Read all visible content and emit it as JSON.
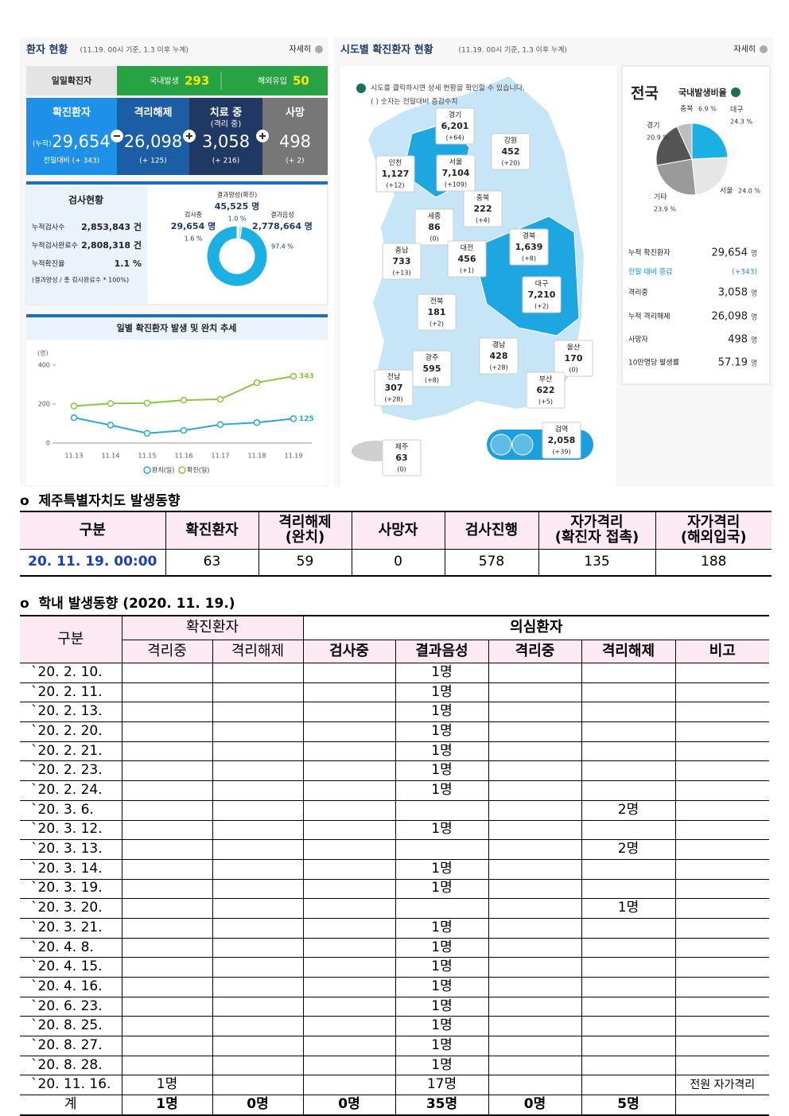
{
  "dashboard": {
    "title": "환자 현황",
    "basis": "(11.19. 00시 기준, 1.3 이후 누계)",
    "more": "자세히",
    "daily_label": "일일확진자",
    "domestic_label": "국내발생",
    "domestic": "293",
    "overseas_label": "해외유입",
    "overseas": "50",
    "stats": [
      {
        "label": "확진환자",
        "prefix": "(누적)",
        "value": "29,654",
        "sub": "전일대비 (+ 343)"
      },
      {
        "label": "격리해제",
        "value": "26,098",
        "sub": "(+ 125)"
      },
      {
        "label": "치료 중",
        "note": "(격리 중)",
        "value": "3,058",
        "sub": "(+ 216)"
      },
      {
        "label": "사망",
        "value": "498",
        "sub": "(+ 2)"
      }
    ],
    "test_title": "검사현황",
    "tests": [
      {
        "label": "누적검사수",
        "value": "2,853,843 건"
      },
      {
        "label": "누적검사완료수",
        "value": "2,808,318 건"
      },
      {
        "label": "누적확진율",
        "value": "1.1 %"
      }
    ],
    "test_note": "(결과양성 / 총 검사완료수 * 100%)",
    "donut_counts": [
      "45,525 명",
      "29,654 명",
      "2,778,664 명"
    ]
  },
  "map": {
    "title": "시도별 확진환자 현황",
    "basis": "(11.19. 00시 기준, 1.3 이후 누계)",
    "more": "자세히",
    "hint": "시도를 클릭하시면 상세 현황을 확인할 수 있습니다.",
    "hint2": "( ) 숫자는 전일대비 증감수치",
    "regions": [
      {
        "name": "경기",
        "total": "6,201",
        "change": "(+64)"
      },
      {
        "name": "강원",
        "total": "452",
        "change": "(+20)"
      },
      {
        "name": "인천",
        "total": "1,127",
        "change": "(+12)"
      },
      {
        "name": "서울",
        "total": "7,104",
        "change": "(+109)"
      },
      {
        "name": "충북",
        "total": "222",
        "change": "(+4)"
      },
      {
        "name": "세종",
        "total": "86",
        "change": "(0)"
      },
      {
        "name": "경북",
        "total": "1,639",
        "change": "(+8)"
      },
      {
        "name": "충남",
        "total": "733",
        "change": "(+13)"
      },
      {
        "name": "대전",
        "total": "456",
        "change": "(+1)"
      },
      {
        "name": "대구",
        "total": "7,210",
        "change": "(+2)"
      },
      {
        "name": "전북",
        "total": "181",
        "change": "(+2)"
      },
      {
        "name": "경남",
        "total": "428",
        "change": "(+28)"
      },
      {
        "name": "울산",
        "total": "170",
        "change": "(0)"
      },
      {
        "name": "광주",
        "total": "595",
        "change": "(+8)"
      },
      {
        "name": "전남",
        "total": "307",
        "change": "(+28)"
      },
      {
        "name": "부산",
        "total": "622",
        "change": "(+5)"
      },
      {
        "name": "검역",
        "total": "2,058",
        "change": "(+39)"
      },
      {
        "name": "제주",
        "total": "63",
        "change": "(0)"
      }
    ]
  },
  "national": {
    "title": "전국",
    "items": [
      {
        "label": "누적 확진환자",
        "value": "29,654",
        "unit": "명"
      },
      {
        "label": "전일 대비 증감",
        "value": "(+343)"
      },
      {
        "label": "격리중",
        "value": "3,058",
        "unit": "명"
      },
      {
        "label": "누적 격리해제",
        "value": "26,098",
        "unit": "명"
      },
      {
        "label": "사망자",
        "value": "498",
        "unit": "명"
      },
      {
        "label": "10만명당 발생률",
        "value": "57.19",
        "unit": "명"
      }
    ]
  },
  "chart_data": [
    {
      "type": "line",
      "title": "일별 확진환자 발생 및 완치 추세",
      "y_label": "(명)",
      "categories": [
        "11.13",
        "11.14",
        "11.15",
        "11.16",
        "11.17",
        "11.18",
        "11.19"
      ],
      "series": [
        {
          "name": "완치(일)",
          "color": "#29a9d6",
          "values": [
            130,
            92,
            50,
            65,
            95,
            105,
            125
          ]
        },
        {
          "name": "확진(일)",
          "color": "#8cc63f",
          "values": [
            190,
            203,
            205,
            220,
            225,
            310,
            343
          ]
        }
      ],
      "ylim": [
        0,
        400
      ],
      "yticks": [
        0,
        200,
        400
      ]
    },
    {
      "type": "donut",
      "categories": [
        "결과양성(확진)",
        "검사중",
        "결과음성"
      ],
      "values": [
        1.0,
        1.6,
        97.4
      ],
      "value_labels": [
        "1.0 %",
        "1.6 %",
        "97.4 %"
      ],
      "colors": [
        "#f2f2f2",
        "#c8d6e0",
        "#1ab0e4"
      ]
    },
    {
      "type": "pie",
      "title": "국내발생비율",
      "categories": [
        "대구",
        "서울",
        "기타",
        "경기",
        "충북"
      ],
      "values": [
        24.3,
        24.0,
        23.9,
        20.9,
        6.9
      ],
      "value_labels": [
        "24.3 %",
        "24.0 %",
        "23.9 %",
        "20.9 %",
        "6.9 %"
      ],
      "colors": [
        "#1ab0e4",
        "#e6e6e6",
        "#9a9a9a",
        "#555555",
        "#bdbdbd"
      ]
    }
  ],
  "jeju": {
    "title": "o  제주특별자치도 발생동향",
    "header": [
      "구분",
      "확진환자",
      "격리해제\n(완치)",
      "사망자",
      "검사진행",
      "자가격리\n(확진자 접촉)",
      "자가격리\n(해외입국)"
    ],
    "rows": [
      [
        "20. 11. 19. 00:00",
        "63",
        "59",
        "0",
        "578",
        "135",
        "188"
      ]
    ]
  },
  "school": {
    "title": "o  학내 발생동향 (2020. 11. 19.)",
    "header_top": [
      "구분",
      "확진환자",
      "의심환자"
    ],
    "header_sub": [
      "격리중",
      "격리해제",
      "검사중",
      "결과음성",
      "격리중",
      "격리해제",
      "비고"
    ],
    "rows": [
      [
        "`20. 2. 10.",
        null,
        null,
        null,
        "1명",
        null,
        null,
        null
      ],
      [
        "`20. 2. 11.",
        null,
        null,
        null,
        "1명",
        null,
        null,
        null
      ],
      [
        "`20. 2. 13.",
        null,
        null,
        null,
        "1명",
        null,
        null,
        null
      ],
      [
        "`20. 2. 20.",
        null,
        null,
        null,
        "1명",
        null,
        null,
        null
      ],
      [
        "`20. 2. 21.",
        null,
        null,
        null,
        "1명",
        null,
        null,
        null
      ],
      [
        "`20. 2. 23.",
        null,
        null,
        null,
        "1명",
        null,
        null,
        null
      ],
      [
        "`20. 2. 24.",
        null,
        null,
        null,
        "1명",
        null,
        null,
        null
      ],
      [
        "`20. 3.  6.",
        null,
        null,
        null,
        null,
        null,
        "2명",
        null
      ],
      [
        "`20. 3. 12.",
        null,
        null,
        null,
        "1명",
        null,
        null,
        null
      ],
      [
        "`20. 3. 13.",
        null,
        null,
        null,
        null,
        null,
        "2명",
        null
      ],
      [
        "`20. 3. 14.",
        null,
        null,
        null,
        "1명",
        null,
        null,
        null
      ],
      [
        "`20. 3. 19.",
        null,
        null,
        null,
        "1명",
        null,
        null,
        null
      ],
      [
        "`20. 3. 20.",
        null,
        null,
        null,
        null,
        null,
        "1명",
        null
      ],
      [
        "`20. 3. 21.",
        null,
        null,
        null,
        "1명",
        null,
        null,
        null
      ],
      [
        "`20. 4.  8.",
        null,
        null,
        null,
        "1명",
        null,
        null,
        null
      ],
      [
        "`20. 4. 15.",
        null,
        null,
        null,
        "1명",
        null,
        null,
        null
      ],
      [
        "`20. 4. 16.",
        null,
        null,
        null,
        "1명",
        null,
        null,
        null
      ],
      [
        "`20. 6. 23.",
        null,
        null,
        null,
        "1명",
        null,
        null,
        null
      ],
      [
        "`20. 8. 25.",
        null,
        null,
        null,
        "1명",
        null,
        null,
        null
      ],
      [
        "`20. 8. 27.",
        null,
        null,
        null,
        "1명",
        null,
        null,
        null
      ],
      [
        "`20. 8. 28.",
        null,
        null,
        null,
        "1명",
        null,
        null,
        null
      ],
      [
        "`20. 11. 16.",
        "1명",
        null,
        null,
        "17명",
        null,
        null,
        "전원 자가격리"
      ]
    ],
    "total": [
      "계",
      "1명",
      "0명",
      "0명",
      "35명",
      "0명",
      "5명",
      null
    ]
  }
}
